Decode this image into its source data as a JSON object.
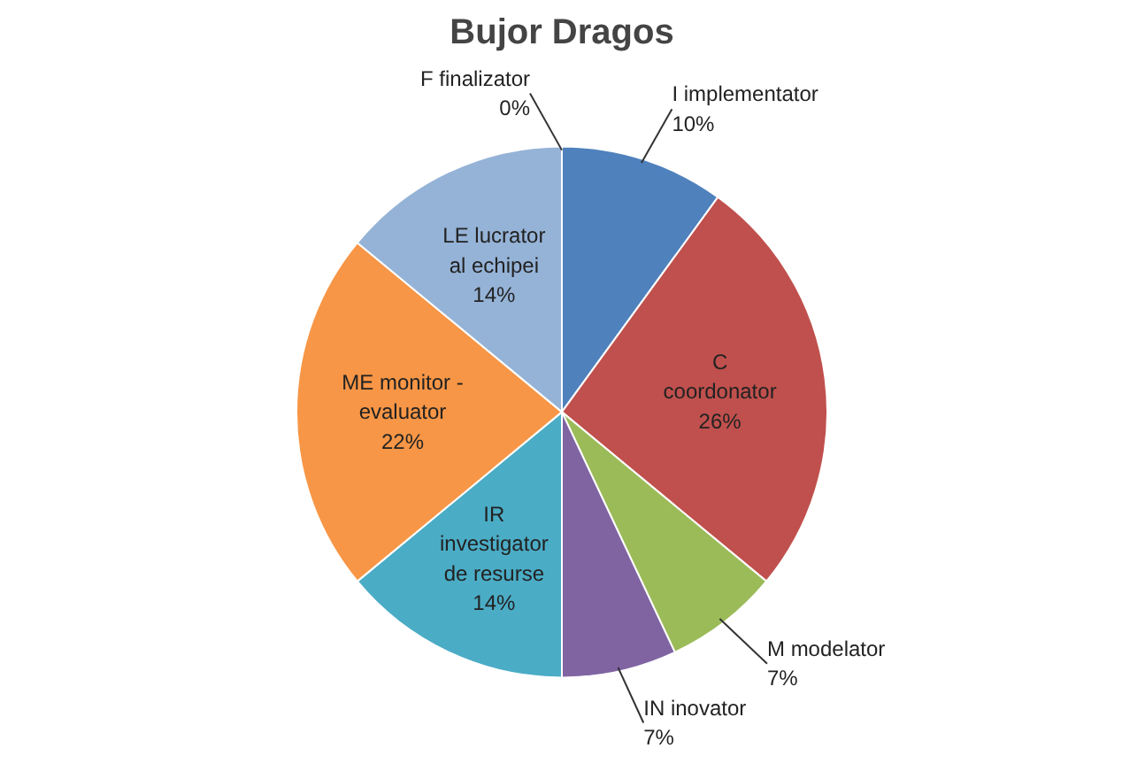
{
  "chart_data": {
    "type": "pie",
    "title": "Bujor Dragos",
    "categories": [
      "I implementator",
      "C coordonator",
      "M modelator",
      "IN inovator",
      "IR investigator de resurse",
      "ME monitor - evaluator",
      "LE lucrator al echipei",
      "F finalizator"
    ],
    "values": [
      10,
      26,
      7,
      7,
      14,
      22,
      14,
      0
    ],
    "value_labels": [
      "10%",
      "26%",
      "7%",
      "7%",
      "14%",
      "22%",
      "14%",
      "0%"
    ],
    "colors": [
      "#4f81bd",
      "#c0504d",
      "#9bbb59",
      "#8064a2",
      "#4bacc6",
      "#f79646",
      "#95b3d7",
      "#2c4d75"
    ]
  }
}
